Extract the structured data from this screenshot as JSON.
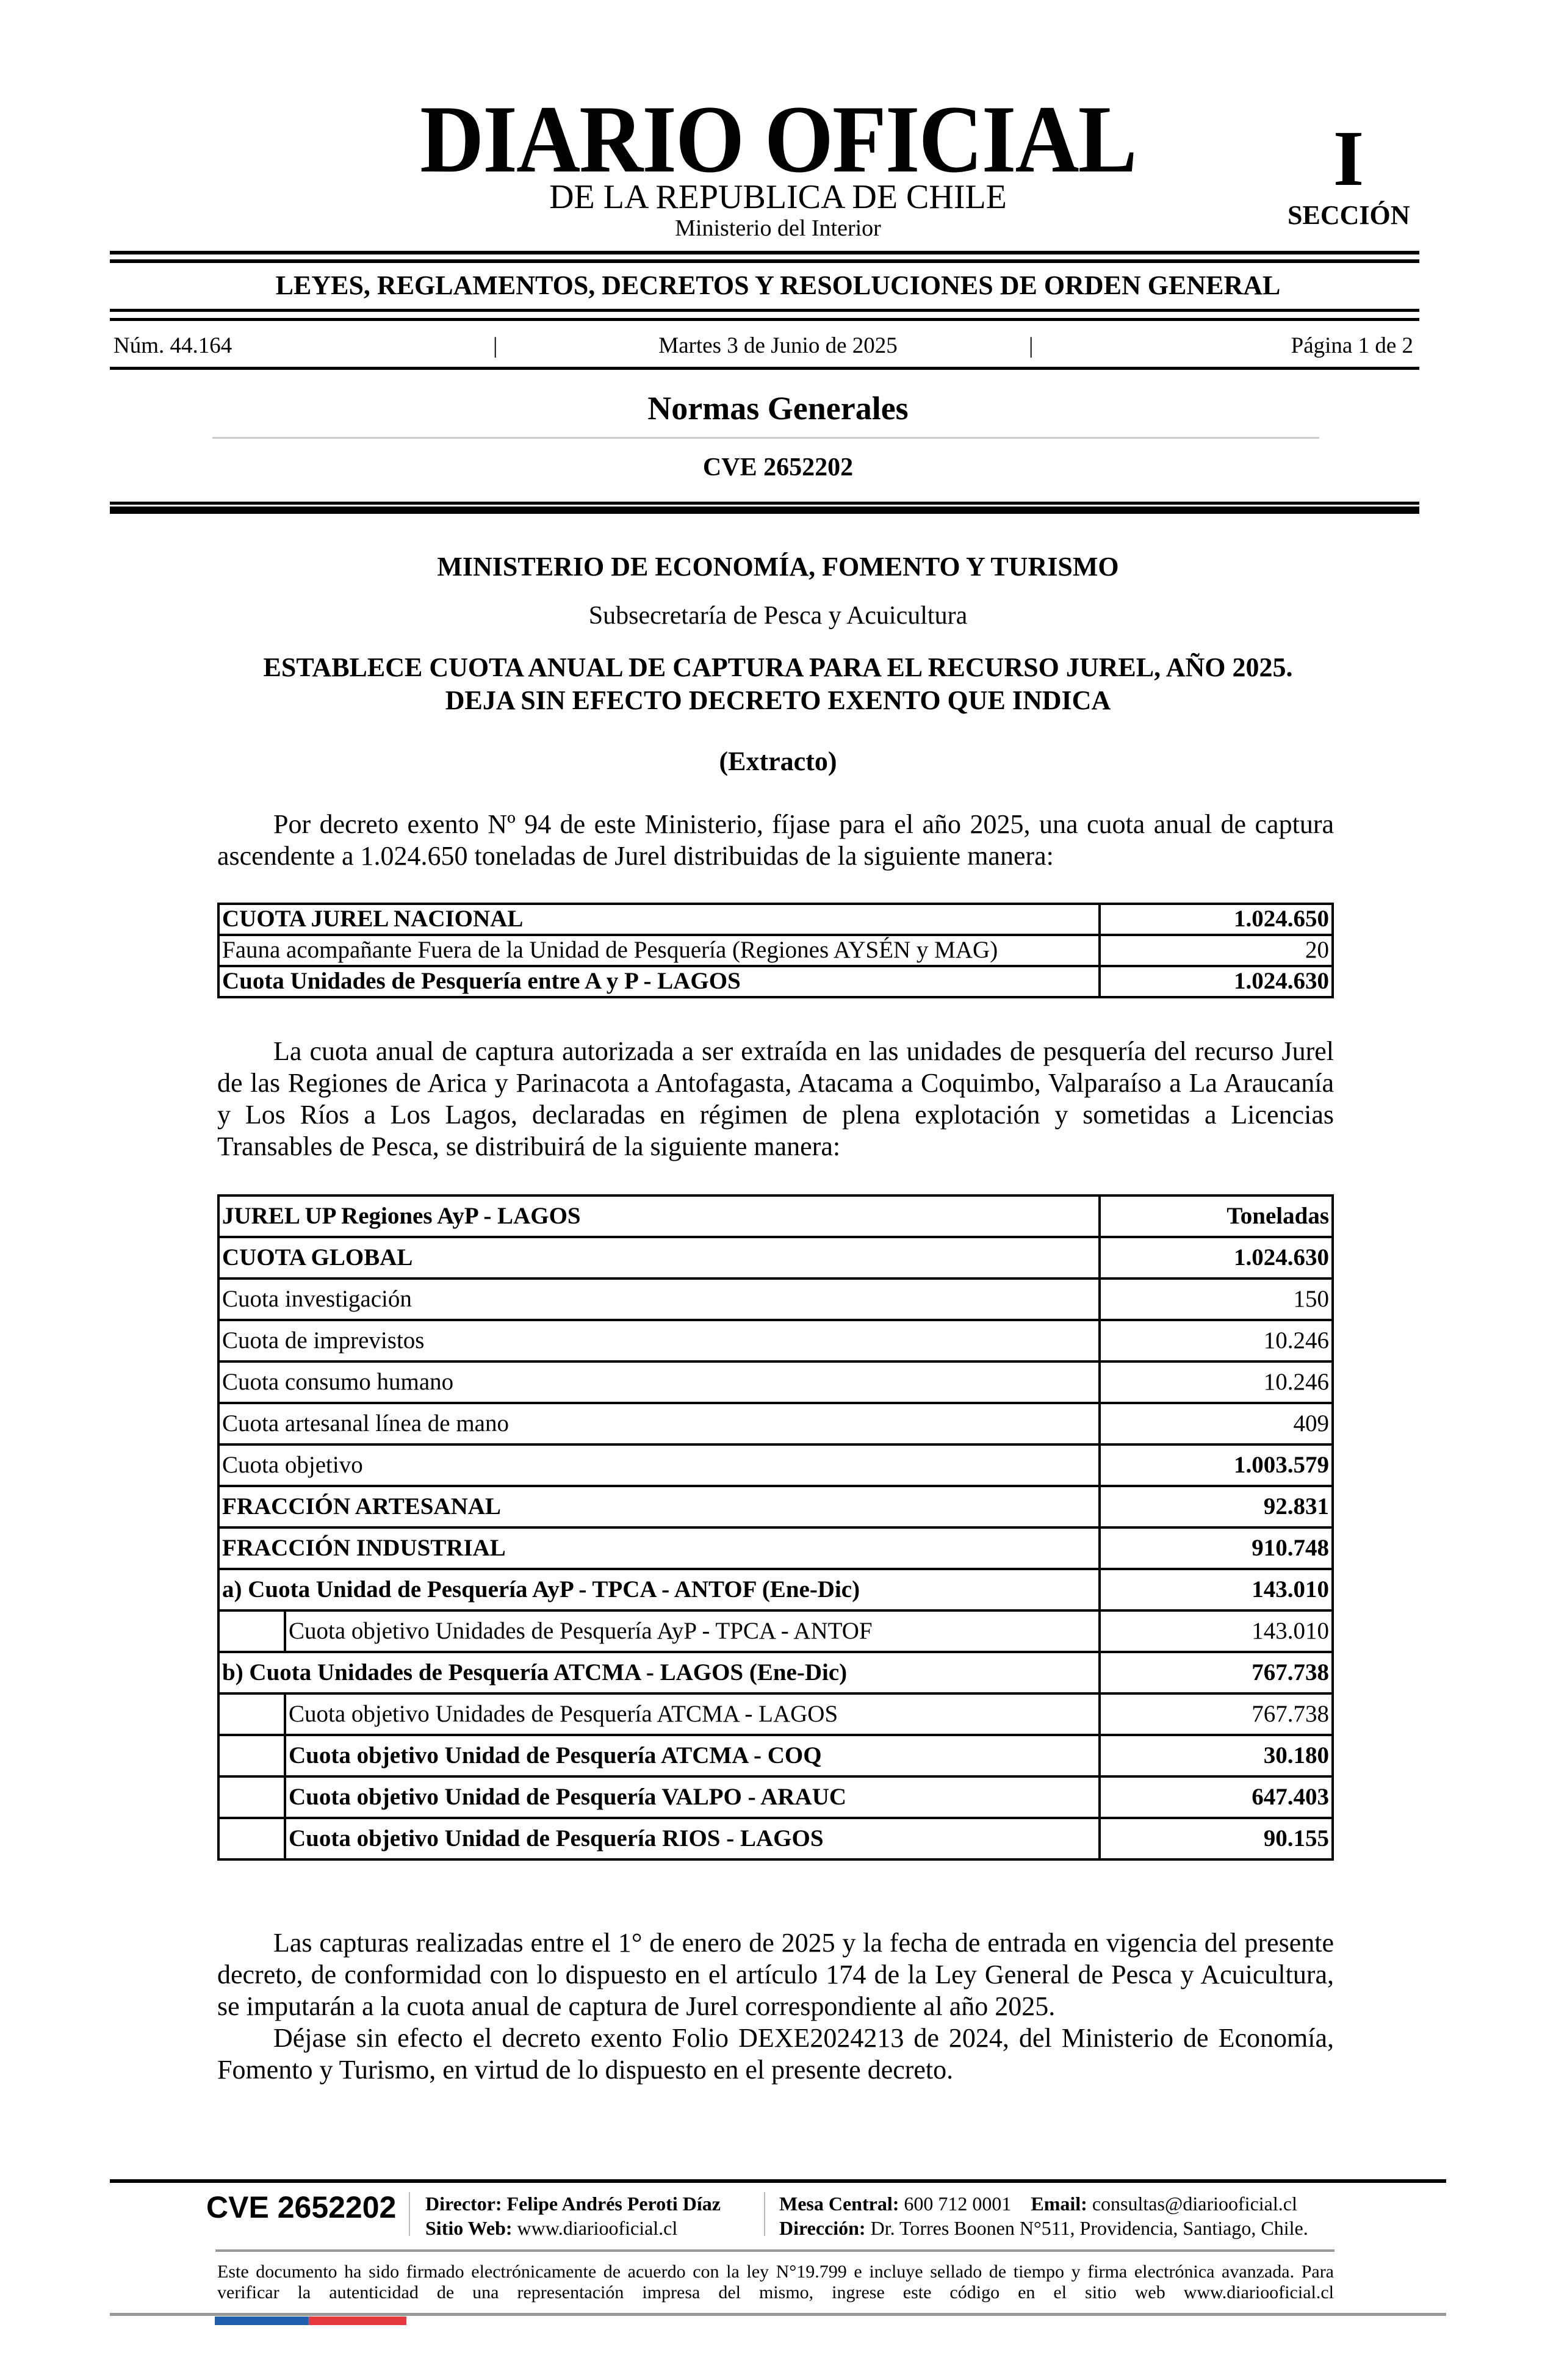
{
  "header": {
    "title": "DIARIO OFICIAL",
    "subtitle": "DE LA REPUBLICA DE CHILE",
    "ministry": "Ministerio del Interior",
    "section_number": "I",
    "section_label": "SECCIÓN",
    "category": "LEYES, REGLAMENTOS, DECRETOS Y RESOLUCIONES DE ORDEN GENERAL",
    "issue_number": "Núm. 44.164",
    "date": "Martes 3 de Junio de 2025",
    "page": "Página 1 de 2",
    "separator": "|",
    "section_title": "Normas Generales",
    "cve": "CVE 2652202"
  },
  "document": {
    "ministry": "MINISTERIO DE ECONOMÍA, FOMENTO Y TURISMO",
    "subsecretaria": "Subsecretaría de Pesca y Acuicultura",
    "title_line1": "ESTABLECE CUOTA ANUAL DE CAPTURA PARA EL RECURSO JUREL, AÑO 2025.",
    "title_line2": "DEJA SIN EFECTO DECRETO EXENTO QUE INDICA",
    "extract_label": "(Extracto)",
    "paragraph1": "Por decreto exento Nº 94 de este Ministerio, fíjase para el año 2025, una cuota anual de captura ascendente a 1.024.650 toneladas de Jurel distribuidas de la siguiente manera:",
    "table1": [
      {
        "label": "CUOTA JUREL NACIONAL",
        "value": "1.024.650",
        "bold": true
      },
      {
        "label": "Fauna acompañante Fuera de la Unidad de Pesquería (Regiones AYSÉN y MAG)",
        "value": "20",
        "bold": false
      },
      {
        "label": "Cuota Unidades de Pesquería entre A y P - LAGOS",
        "value": "1.024.630",
        "bold": true
      }
    ],
    "paragraph2": "La cuota anual de captura autorizada a ser extraída en las unidades de pesquería del recurso Jurel de las Regiones de Arica y Parinacota a Antofagasta, Atacama a Coquimbo, Valparaíso a La Araucanía y Los Ríos a Los Lagos, declaradas en régimen de plena explotación y sometidas a Licencias Transables de Pesca, se distribuirá de la siguiente manera:",
    "table2": [
      {
        "label": "JUREL UP Regiones AyP - LAGOS",
        "value": "Toneladas",
        "bold": true,
        "indent": false
      },
      {
        "label": "CUOTA GLOBAL",
        "value": "1.024.630",
        "bold": true,
        "indent": false
      },
      {
        "label": "Cuota investigación",
        "value": "150",
        "bold": false,
        "indent": false
      },
      {
        "label": "Cuota de imprevistos",
        "value": "10.246",
        "bold": false,
        "indent": false
      },
      {
        "label": "Cuota consumo humano",
        "value": "10.246",
        "bold": false,
        "indent": false
      },
      {
        "label": "Cuota artesanal línea de mano",
        "value": "409",
        "bold": false,
        "indent": false
      },
      {
        "label": "Cuota objetivo",
        "value": "1.003.579",
        "bold": false,
        "value_bold": true,
        "indent": false
      },
      {
        "label": "FRACCIÓN ARTESANAL",
        "value": "92.831",
        "bold": true,
        "indent": false
      },
      {
        "label": "FRACCIÓN INDUSTRIAL",
        "value": "910.748",
        "bold": true,
        "indent": false
      },
      {
        "label": "a) Cuota Unidad de Pesquería AyP - TPCA - ANTOF (Ene-Dic)",
        "value": "143.010",
        "bold": true,
        "indent": false
      },
      {
        "label": "Cuota objetivo Unidades de Pesquería AyP - TPCA - ANTOF",
        "value": "143.010",
        "bold": false,
        "indent": true
      },
      {
        "label": "b) Cuota Unidades de Pesquería ATCMA - LAGOS (Ene-Dic)",
        "value": "767.738",
        "bold": true,
        "indent": false
      },
      {
        "label": "Cuota objetivo Unidades de Pesquería ATCMA - LAGOS",
        "value": "767.738",
        "bold": false,
        "indent": true
      },
      {
        "label": "Cuota objetivo Unidad de Pesquería ATCMA - COQ",
        "value": "30.180",
        "bold": true,
        "indent": true
      },
      {
        "label": "Cuota objetivo Unidad de Pesquería VALPO - ARAUC",
        "value": "647.403",
        "bold": true,
        "indent": true
      },
      {
        "label": "Cuota objetivo Unidad de Pesquería RIOS - LAGOS",
        "value": "90.155",
        "bold": true,
        "indent": true
      }
    ],
    "paragraph3": "Las capturas realizadas entre el 1° de enero de 2025 y la fecha de entrada en vigencia del presente decreto, de conformidad con lo dispuesto en el artículo 174 de la Ley General de Pesca y Acuicultura, se imputarán a la cuota anual de captura de Jurel correspondiente al año 2025.",
    "paragraph4": "Déjase sin efecto el decreto exento Folio DEXE2024213 de 2024, del Ministerio de Economía, Fomento y Turismo, en virtud de lo dispuesto en el presente decreto."
  },
  "footer": {
    "cve": "CVE 2652202",
    "director_label": "Director:",
    "director": "Felipe Andrés Peroti Díaz",
    "website_label": "Sitio Web:",
    "website": "www.diariooficial.cl",
    "phone_label": "Mesa Central:",
    "phone": "600 712 0001",
    "email_label": "Email:",
    "email": "consultas@diariooficial.cl",
    "address_label": "Dirección:",
    "address": "Dr. Torres Boonen N°511, Providencia, Santiago, Chile.",
    "disclaimer": "Este documento ha sido firmado electrónicamente de acuerdo con la ley N°19.799 e incluye sellado de tiempo y firma electrónica avanzada. Para verificar la autenticidad de una representación impresa del mismo, ingrese este código en el sitio web www.diariooficial.cl",
    "flag_colors": [
      "#1f5fae",
      "#e5393f"
    ]
  }
}
